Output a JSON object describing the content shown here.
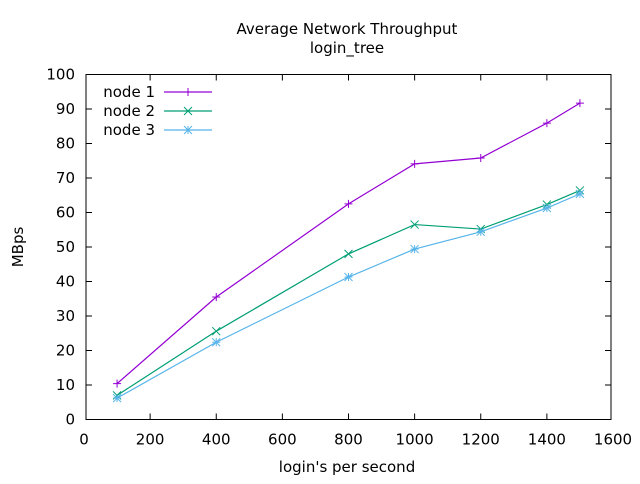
{
  "chart_data": {
    "type": "line",
    "title": "Average Network Throughput",
    "subtitle": "login_tree",
    "xlabel": "login's per second",
    "ylabel": "MBps",
    "xlim": [
      0,
      1600
    ],
    "ylim": [
      0,
      100
    ],
    "xticks": [
      0,
      200,
      400,
      600,
      800,
      1000,
      1200,
      1400,
      1600
    ],
    "yticks": [
      0,
      10,
      20,
      30,
      40,
      50,
      60,
      70,
      80,
      90,
      100
    ],
    "grid": false,
    "legend_position": "top-left",
    "x": [
      100,
      400,
      800,
      1000,
      1200,
      1400,
      1500
    ],
    "series": [
      {
        "name": "node 1",
        "color": "#9400d3",
        "marker": "plus",
        "values": [
          10.4,
          35.5,
          62.5,
          74.1,
          75.8,
          85.9,
          91.7
        ]
      },
      {
        "name": "node 2",
        "color": "#009e73",
        "marker": "cross",
        "values": [
          7.0,
          25.6,
          48.0,
          56.5,
          55.2,
          62.3,
          66.4
        ]
      },
      {
        "name": "node 3",
        "color": "#56b4e9",
        "marker": "star",
        "values": [
          6.2,
          22.4,
          41.3,
          49.4,
          54.4,
          61.3,
          65.4
        ]
      }
    ]
  }
}
